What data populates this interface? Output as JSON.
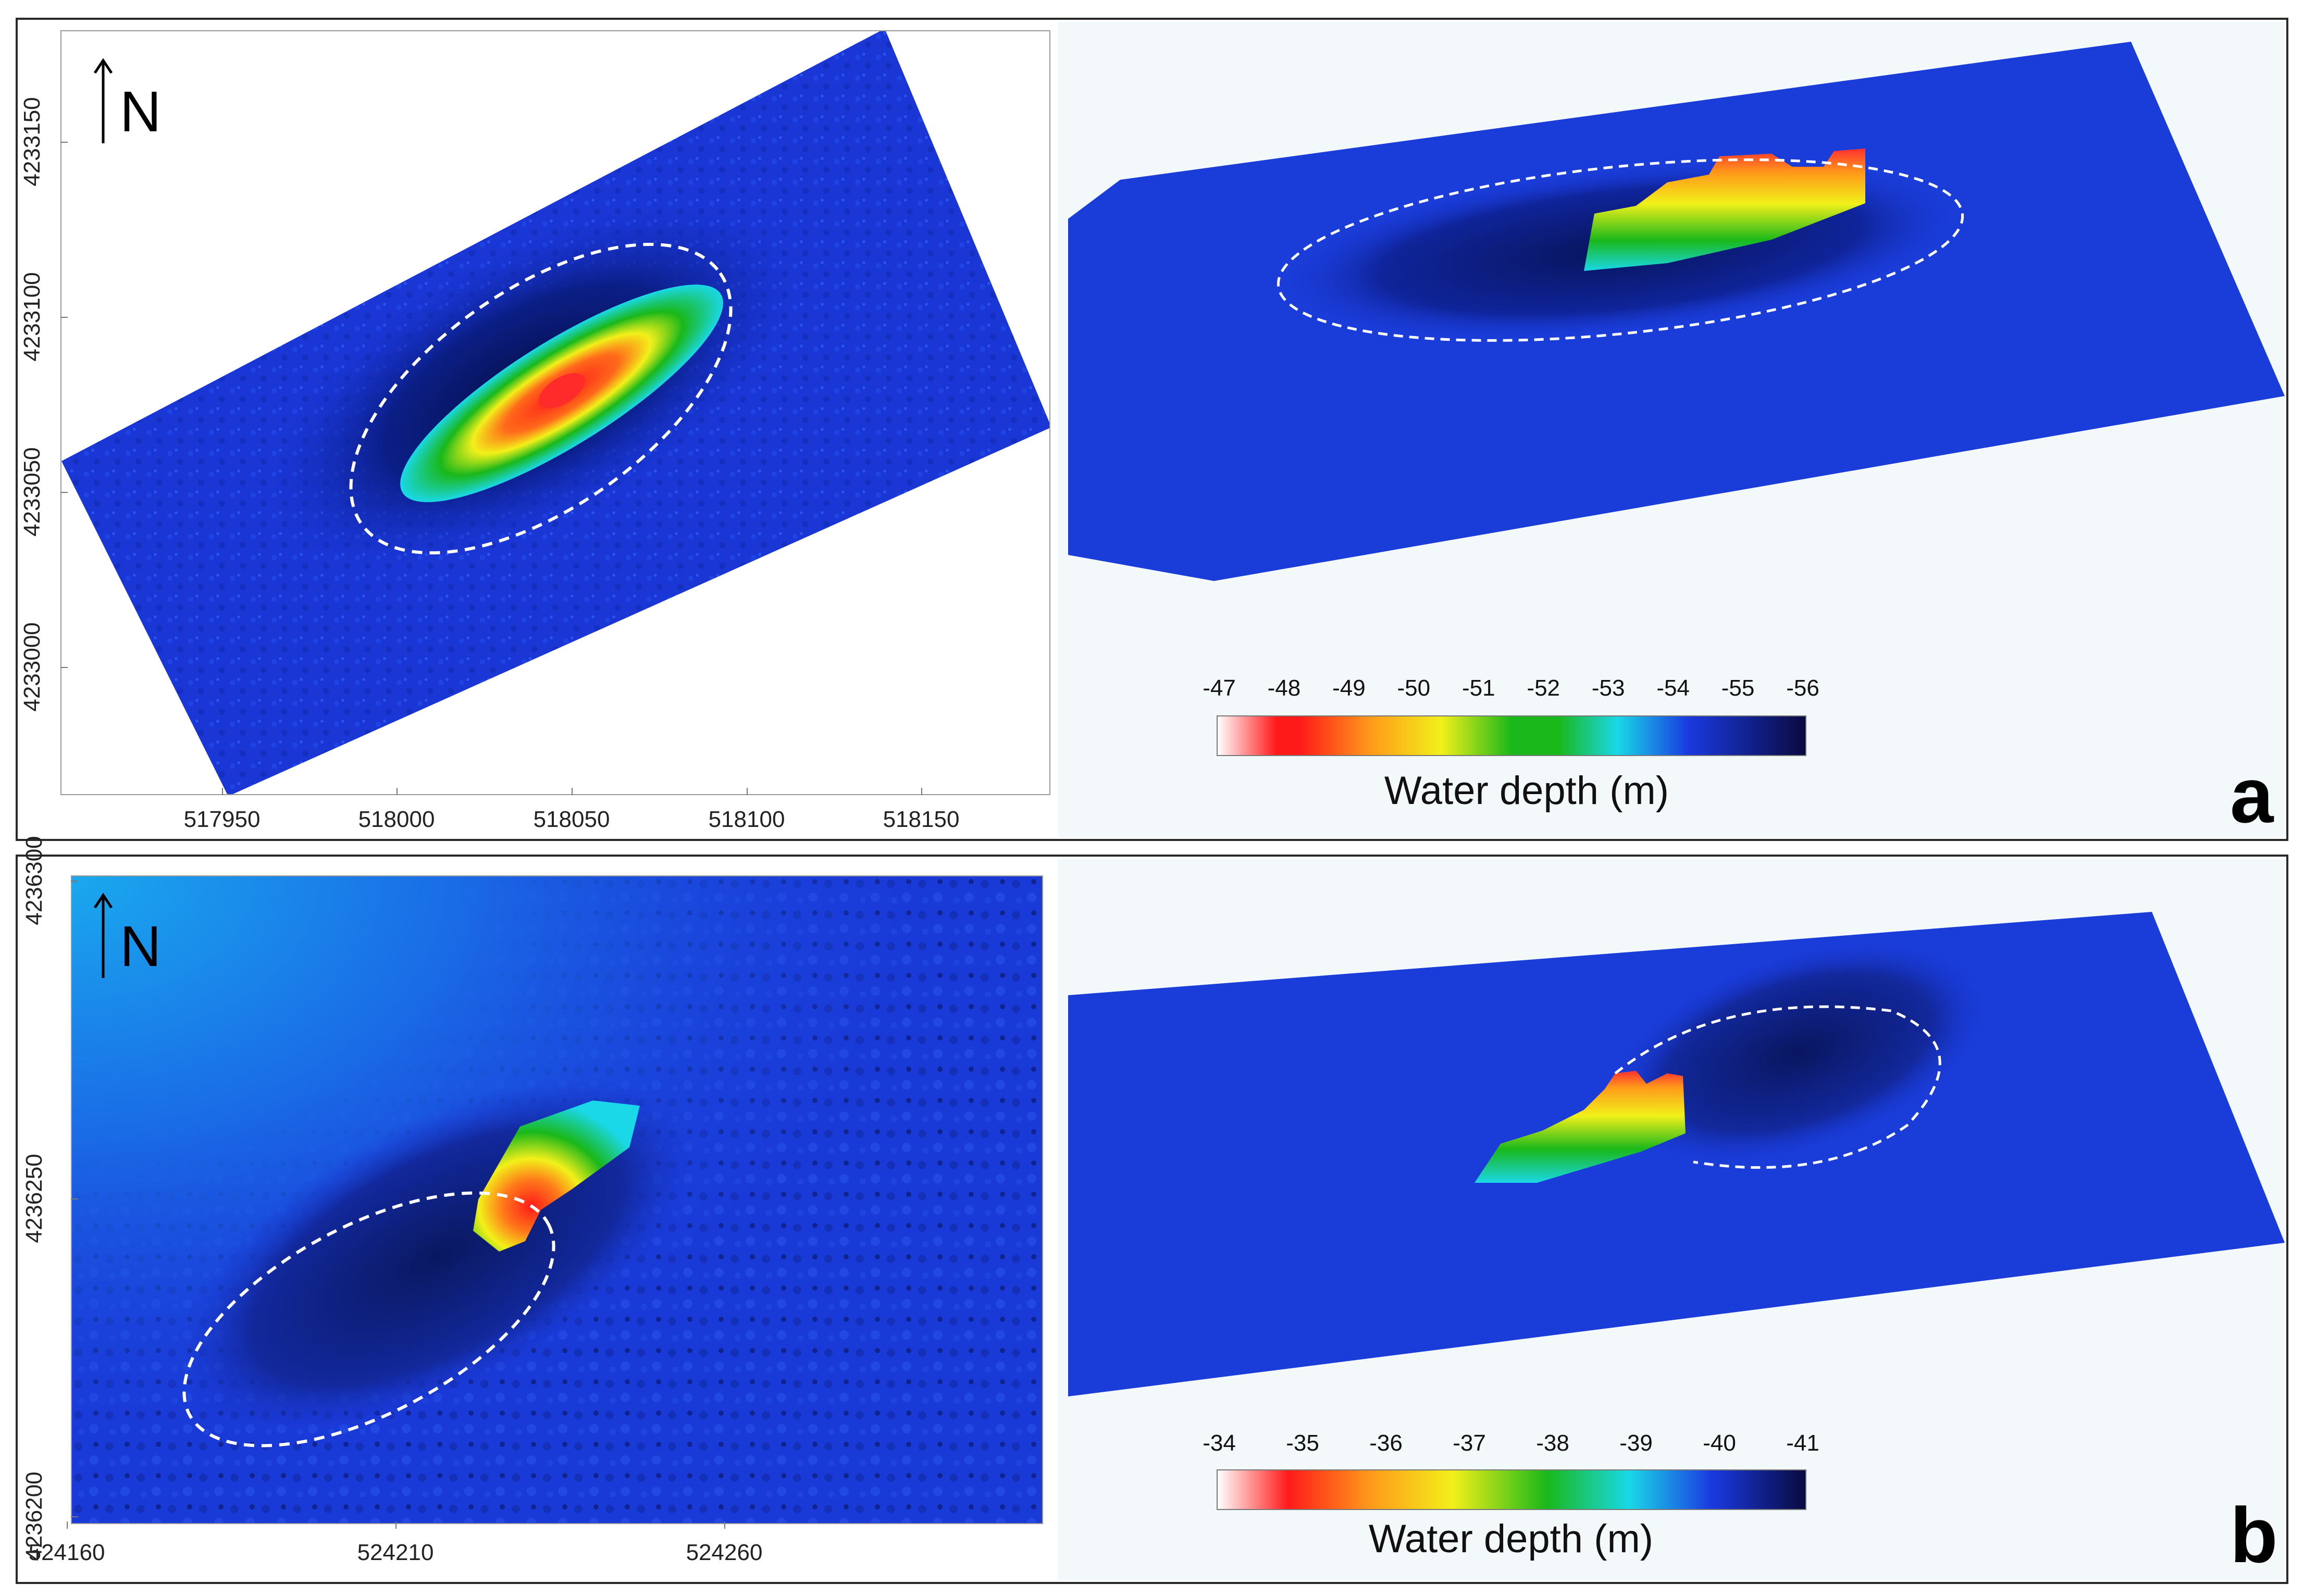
{
  "panels": [
    {
      "letter": "a",
      "map": {
        "x_ticks": [
          "517950",
          "518000",
          "518050",
          "518100",
          "518150"
        ],
        "y_ticks": [
          "4233150",
          "4233100",
          "4233050",
          "4233000"
        ],
        "north_label": "N"
      },
      "colorbar": {
        "ticks": [
          "-47",
          "-48",
          "-49",
          "-50",
          "-51",
          "-52",
          "-53",
          "-54",
          "-55",
          "-56"
        ],
        "title": "Water depth (m)"
      }
    },
    {
      "letter": "b",
      "map": {
        "x_ticks": [
          "524160",
          "524210",
          "524260"
        ],
        "y_ticks": [
          "4236300",
          "4236250",
          "4236200"
        ],
        "north_label": "N"
      },
      "colorbar": {
        "ticks": [
          "-34",
          "-35",
          "-36",
          "-37",
          "-38",
          "-39",
          "-40",
          "-41"
        ],
        "title": "Water depth (m)"
      }
    }
  ],
  "colors": {
    "shallow": "#ffffff",
    "red": "#ff1a1a",
    "orange": "#ff9a1a",
    "yellow": "#f2f01a",
    "green": "#1ab81a",
    "cyan": "#1ad8e8",
    "blue": "#1a3ae0",
    "deep": "#0a0a40"
  }
}
